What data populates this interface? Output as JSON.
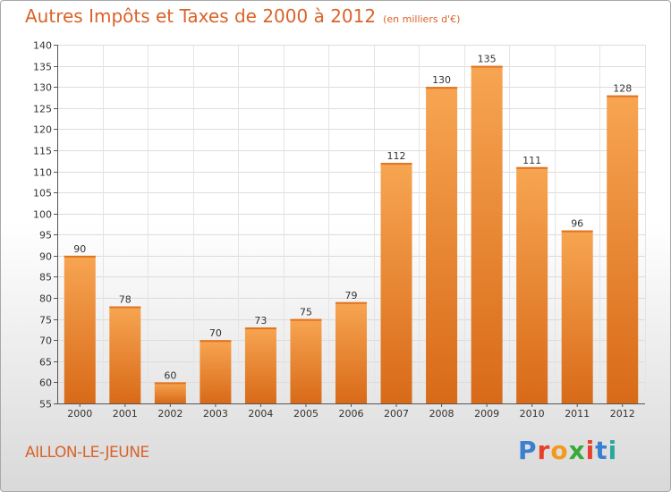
{
  "title": "Autres Impôts et Taxes de 2000 à 2012",
  "unit": "(en milliers d'€)",
  "commune": "AILLON-LE-JEUNE",
  "brand": {
    "letters": [
      "P",
      "r",
      "o",
      "x",
      "i",
      "t",
      "i"
    ],
    "colors": [
      "#3a7fd0",
      "#e8402a",
      "#f39a1e",
      "#3aa83a",
      "#e8402a",
      "#3a7fd0",
      "#2aa6a0"
    ]
  },
  "chart_data": {
    "type": "bar",
    "title": "Autres Impôts et Taxes de 2000 à 2012",
    "subtitle": "(en milliers d'€)",
    "categories": [
      "2000",
      "2001",
      "2002",
      "2003",
      "2004",
      "2005",
      "2006",
      "2007",
      "2008",
      "2009",
      "2010",
      "2011",
      "2012"
    ],
    "values": [
      90,
      78,
      60,
      70,
      73,
      75,
      79,
      112,
      130,
      135,
      111,
      96,
      128
    ],
    "ylim": [
      55,
      140
    ],
    "yticks": [
      55,
      60,
      65,
      70,
      75,
      80,
      85,
      90,
      95,
      100,
      105,
      110,
      115,
      120,
      125,
      130,
      135,
      140
    ],
    "grid": true,
    "bar_color": "#f08a30"
  }
}
